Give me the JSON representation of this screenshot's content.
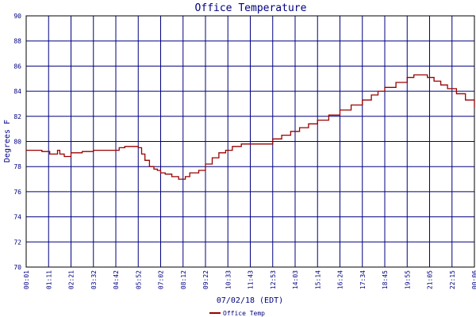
{
  "chart_data": {
    "type": "line",
    "title": "Office Temperature",
    "xlabel": "07/02/18 (EDT)",
    "ylabel": "Degrees F",
    "ylim": [
      70,
      90
    ],
    "yticks": [
      70,
      72,
      74,
      76,
      78,
      80,
      82,
      84,
      86,
      88,
      90
    ],
    "xticks": [
      "00:01",
      "01:11",
      "02:21",
      "03:32",
      "04:42",
      "05:52",
      "07:02",
      "08:12",
      "09:22",
      "10:33",
      "11:43",
      "12:53",
      "14:03",
      "15:14",
      "16:24",
      "17:34",
      "18:45",
      "19:55",
      "21:05",
      "22:15",
      "00:06"
    ],
    "grid": true,
    "legend_position": "bottom-left",
    "colors": {
      "series": "#990000",
      "grid": "#000080",
      "text": "#000080",
      "axes": "#000000"
    },
    "series": [
      {
        "name": "Office Temp",
        "x": [
          0,
          0.3,
          0.7,
          0.95,
          1.05,
          1.2,
          1.4,
          1.5,
          1.7,
          2.0,
          2.5,
          3.0,
          3.5,
          4.0,
          4.15,
          4.4,
          4.7,
          5.0,
          5.15,
          5.3,
          5.5,
          5.7,
          5.85,
          6.0,
          6.2,
          6.5,
          6.8,
          7.0,
          7.1,
          7.3,
          7.5,
          7.7,
          8.0,
          8.3,
          8.6,
          8.9,
          9.2,
          9.6,
          10.0,
          10.5,
          11.0,
          11.4,
          11.8,
          12.2,
          12.6,
          13.0,
          13.5,
          14.0,
          14.5,
          15.0,
          15.4,
          15.7,
          16.0,
          16.5,
          17.0,
          17.3,
          17.6,
          17.9,
          18.2,
          18.5,
          18.8,
          19.2,
          19.6,
          20.0
        ],
        "values": [
          79.3,
          79.3,
          79.2,
          79.2,
          79.0,
          79.0,
          79.3,
          79.0,
          78.8,
          79.1,
          79.2,
          79.3,
          79.3,
          79.3,
          79.5,
          79.6,
          79.6,
          79.5,
          79.0,
          78.5,
          78.0,
          77.8,
          77.7,
          77.5,
          77.4,
          77.2,
          77.0,
          77.0,
          77.2,
          77.5,
          77.5,
          77.7,
          78.2,
          78.7,
          79.1,
          79.3,
          79.6,
          79.8,
          79.8,
          79.8,
          80.2,
          80.5,
          80.8,
          81.1,
          81.4,
          81.7,
          82.1,
          82.5,
          82.9,
          83.3,
          83.7,
          84.0,
          84.3,
          84.7,
          85.1,
          85.3,
          85.3,
          85.1,
          84.8,
          84.5,
          84.2,
          83.8,
          83.3,
          82.7
        ],
        "values_tail_note": ""
      }
    ]
  }
}
